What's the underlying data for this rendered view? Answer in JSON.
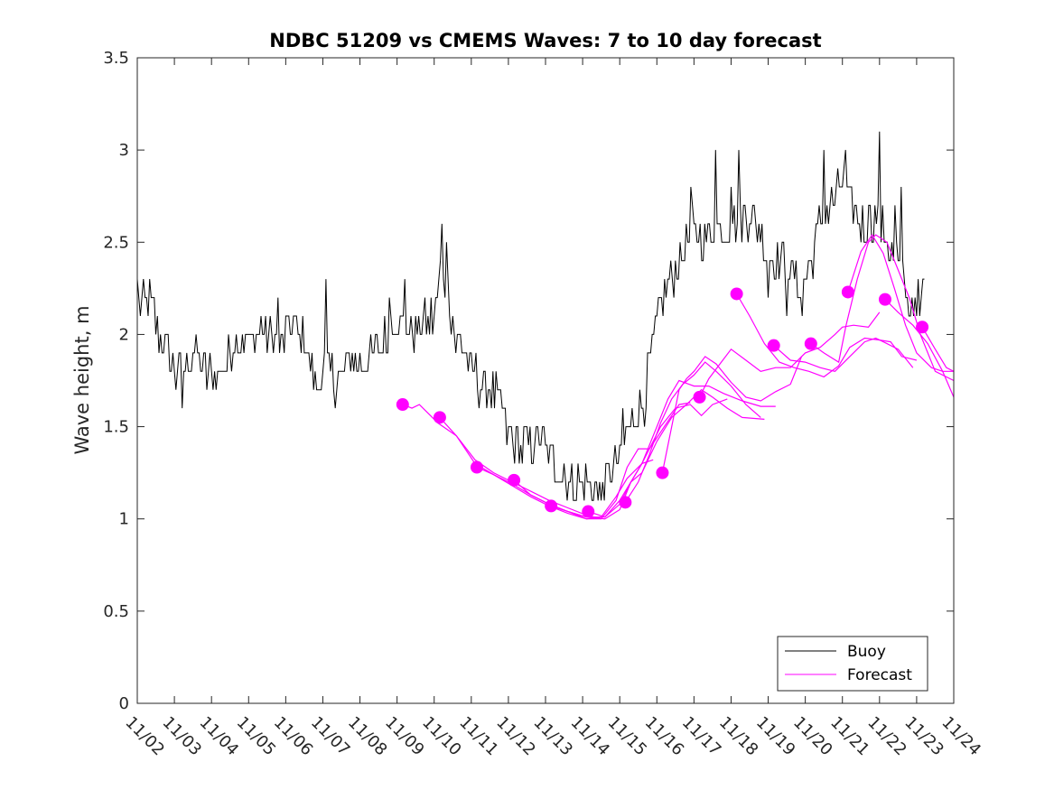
{
  "chart_data": {
    "type": "line",
    "title": "NDBC 51209 vs CMEMS Waves: 7 to 10 day forecast",
    "xlabel": "",
    "ylabel": "Wave height, m",
    "xlim": [
      0,
      22
    ],
    "ylim": [
      0,
      3.5
    ],
    "x_tick_labels": [
      "11/02",
      "11/03",
      "11/04",
      "11/05",
      "11/06",
      "11/07",
      "11/08",
      "11/09",
      "11/10",
      "11/11",
      "11/12",
      "11/13",
      "11/14",
      "11/15",
      "11/16",
      "11/17",
      "11/18",
      "11/19",
      "11/20",
      "11/21",
      "11/22",
      "11/23",
      "11/24"
    ],
    "y_ticks": [
      0,
      0.5,
      1,
      1.5,
      2,
      2.5,
      3,
      3.5
    ],
    "y_tick_labels": [
      "0",
      "0.5",
      "1",
      "1.5",
      "2",
      "2.5",
      "3",
      "3.5"
    ],
    "grid": false,
    "legend": {
      "position": "bottom-right",
      "entries": [
        "Buoy",
        "Forecast"
      ]
    },
    "colors": {
      "buoy": "#000000",
      "forecast": "#ff00ff"
    },
    "buoy": {
      "name": "Buoy",
      "anchors": [
        [
          0.0,
          2.15
        ],
        [
          0.3,
          2.2
        ],
        [
          0.6,
          2.0
        ],
        [
          0.9,
          1.85
        ],
        [
          1.2,
          1.75
        ],
        [
          1.5,
          1.9
        ],
        [
          1.8,
          1.8
        ],
        [
          2.1,
          1.75
        ],
        [
          2.4,
          1.85
        ],
        [
          2.7,
          2.0
        ],
        [
          3.0,
          1.95
        ],
        [
          3.3,
          2.05
        ],
        [
          3.6,
          2.0
        ],
        [
          3.9,
          1.95
        ],
        [
          4.2,
          2.05
        ],
        [
          4.5,
          1.95
        ],
        [
          4.8,
          1.75
        ],
        [
          5.1,
          1.8
        ],
        [
          5.4,
          1.75
        ],
        [
          5.7,
          1.85
        ],
        [
          6.0,
          1.85
        ],
        [
          6.3,
          1.85
        ],
        [
          6.6,
          1.95
        ],
        [
          6.9,
          2.05
        ],
        [
          7.2,
          2.05
        ],
        [
          7.5,
          2.0
        ],
        [
          7.8,
          2.05
        ],
        [
          8.0,
          2.1
        ],
        [
          8.2,
          2.35
        ],
        [
          8.4,
          2.2
        ],
        [
          8.6,
          1.95
        ],
        [
          8.8,
          1.95
        ],
        [
          9.0,
          1.8
        ],
        [
          9.2,
          1.75
        ],
        [
          9.5,
          1.7
        ],
        [
          9.8,
          1.6
        ],
        [
          10.0,
          1.45
        ],
        [
          10.3,
          1.4
        ],
        [
          10.6,
          1.4
        ],
        [
          10.9,
          1.45
        ],
        [
          11.2,
          1.3
        ],
        [
          11.5,
          1.2
        ],
        [
          11.8,
          1.2
        ],
        [
          12.1,
          1.2
        ],
        [
          12.4,
          1.15
        ],
        [
          12.7,
          1.25
        ],
        [
          13.0,
          1.3
        ],
        [
          13.2,
          1.45
        ],
        [
          13.4,
          1.55
        ],
        [
          13.6,
          1.6
        ],
        [
          13.8,
          1.8
        ],
        [
          14.0,
          2.05
        ],
        [
          14.2,
          2.25
        ],
        [
          14.5,
          2.35
        ],
        [
          14.8,
          2.5
        ],
        [
          15.0,
          2.55
        ],
        [
          15.3,
          2.55
        ],
        [
          15.6,
          2.6
        ],
        [
          15.9,
          2.6
        ],
        [
          16.2,
          2.65
        ],
        [
          16.5,
          2.65
        ],
        [
          16.8,
          2.55
        ],
        [
          17.0,
          2.45
        ],
        [
          17.3,
          2.4
        ],
        [
          17.6,
          2.35
        ],
        [
          17.9,
          2.25
        ],
        [
          18.2,
          2.45
        ],
        [
          18.5,
          2.65
        ],
        [
          18.8,
          2.75
        ],
        [
          19.0,
          2.8
        ],
        [
          19.3,
          2.7
        ],
        [
          19.6,
          2.55
        ],
        [
          19.9,
          2.65
        ],
        [
          20.2,
          2.5
        ],
        [
          20.5,
          2.4
        ],
        [
          20.7,
          2.2
        ],
        [
          20.9,
          2.15
        ],
        [
          21.2,
          2.25
        ]
      ],
      "spikes": [
        [
          0.0,
          2.3
        ],
        [
          1.2,
          1.6
        ],
        [
          3.8,
          2.2
        ],
        [
          4.0,
          2.1
        ],
        [
          5.1,
          2.3
        ],
        [
          6.8,
          2.2
        ],
        [
          7.2,
          2.3
        ],
        [
          8.2,
          2.6
        ],
        [
          8.35,
          2.5
        ],
        [
          11.5,
          1.3
        ],
        [
          12.4,
          1.1
        ],
        [
          12.5,
          1.1
        ],
        [
          13.1,
          1.6
        ],
        [
          14.9,
          2.8
        ],
        [
          15.6,
          3.0
        ],
        [
          16.0,
          2.8
        ],
        [
          16.2,
          3.0
        ],
        [
          17.0,
          2.2
        ],
        [
          17.5,
          2.1
        ],
        [
          17.9,
          2.1
        ],
        [
          18.5,
          3.0
        ],
        [
          19.1,
          3.0
        ],
        [
          19.7,
          2.7
        ],
        [
          20.0,
          3.1
        ],
        [
          20.4,
          2.7
        ],
        [
          20.6,
          2.8
        ],
        [
          20.8,
          2.1
        ],
        [
          21.1,
          2.1
        ],
        [
          21.3,
          2.4
        ]
      ],
      "noise_amplitude": 0.1,
      "quantization": 0.1,
      "samples_per_day": 24
    },
    "forecasts": [
      {
        "name": "Forecast",
        "marker": [
          7.15,
          1.62
        ],
        "points": [
          [
            7.15,
            1.62
          ],
          [
            7.4,
            1.6
          ],
          [
            7.6,
            1.62
          ],
          [
            7.9,
            1.56
          ],
          [
            8.1,
            1.52
          ],
          [
            8.6,
            1.45
          ],
          [
            9.1,
            1.32
          ],
          [
            9.6,
            1.25
          ],
          [
            10.1,
            1.2
          ],
          [
            10.6,
            1.15
          ],
          [
            11.1,
            1.1
          ],
          [
            11.6,
            1.06
          ],
          [
            12.1,
            1.02
          ],
          [
            12.5,
            1.0
          ]
        ]
      },
      {
        "name": "Forecast",
        "marker": [
          8.15,
          1.55
        ],
        "points": [
          [
            8.15,
            1.55
          ],
          [
            8.6,
            1.45
          ],
          [
            9.1,
            1.3
          ],
          [
            9.6,
            1.24
          ],
          [
            10.1,
            1.19
          ],
          [
            10.6,
            1.13
          ],
          [
            11.1,
            1.08
          ],
          [
            11.6,
            1.04
          ],
          [
            12.1,
            1.01
          ],
          [
            12.6,
            1.0
          ],
          [
            13.0,
            1.05
          ],
          [
            13.3,
            1.2
          ],
          [
            13.6,
            1.3
          ],
          [
            13.9,
            1.32
          ]
        ]
      },
      {
        "name": "Forecast",
        "marker": [
          9.15,
          1.28
        ],
        "points": [
          [
            9.15,
            1.28
          ],
          [
            9.6,
            1.24
          ],
          [
            10.1,
            1.18
          ],
          [
            10.6,
            1.12
          ],
          [
            11.1,
            1.07
          ],
          [
            11.6,
            1.03
          ],
          [
            12.1,
            1.0
          ],
          [
            12.5,
            1.0
          ],
          [
            12.9,
            1.1
          ],
          [
            13.2,
            1.28
          ],
          [
            13.5,
            1.38
          ],
          [
            13.8,
            1.38
          ],
          [
            14.2,
            1.5
          ],
          [
            14.6,
            1.62
          ],
          [
            14.9,
            1.63
          ]
        ]
      },
      {
        "name": "Forecast",
        "marker": [
          10.15,
          1.21
        ],
        "points": [
          [
            10.15,
            1.21
          ],
          [
            10.6,
            1.13
          ],
          [
            11.1,
            1.08
          ],
          [
            11.6,
            1.04
          ],
          [
            12.1,
            1.0
          ],
          [
            12.5,
            1.01
          ],
          [
            12.9,
            1.12
          ],
          [
            13.2,
            1.22
          ],
          [
            13.6,
            1.3
          ],
          [
            14.1,
            1.5
          ],
          [
            14.5,
            1.6
          ],
          [
            14.9,
            1.62
          ],
          [
            15.2,
            1.56
          ],
          [
            15.5,
            1.62
          ],
          [
            15.9,
            1.65
          ]
        ]
      },
      {
        "name": "Forecast",
        "marker": [
          11.15,
          1.07
        ],
        "points": [
          [
            11.15,
            1.07
          ],
          [
            11.6,
            1.04
          ],
          [
            12.1,
            1.01
          ],
          [
            12.6,
            1.01
          ],
          [
            13.0,
            1.1
          ],
          [
            13.3,
            1.2
          ],
          [
            13.6,
            1.25
          ],
          [
            14.0,
            1.42
          ],
          [
            14.4,
            1.55
          ],
          [
            14.8,
            1.62
          ],
          [
            15.2,
            1.7
          ],
          [
            15.5,
            1.66
          ],
          [
            15.9,
            1.6
          ],
          [
            16.3,
            1.55
          ],
          [
            16.9,
            1.54
          ]
        ]
      },
      {
        "name": "Forecast",
        "marker": [
          12.15,
          1.04
        ],
        "points": [
          [
            12.15,
            1.04
          ],
          [
            12.6,
            1.01
          ],
          [
            13.0,
            1.08
          ],
          [
            13.3,
            1.2
          ],
          [
            13.6,
            1.3
          ],
          [
            14.0,
            1.5
          ],
          [
            14.3,
            1.65
          ],
          [
            14.6,
            1.75
          ],
          [
            15.0,
            1.72
          ],
          [
            15.4,
            1.72
          ],
          [
            15.8,
            1.68
          ],
          [
            16.3,
            1.64
          ],
          [
            16.8,
            1.61
          ],
          [
            17.2,
            1.61
          ]
        ]
      },
      {
        "name": "Forecast",
        "marker": [
          13.15,
          1.09
        ],
        "points": [
          [
            13.15,
            1.09
          ],
          [
            13.5,
            1.2
          ],
          [
            13.8,
            1.35
          ],
          [
            14.1,
            1.52
          ],
          [
            14.4,
            1.65
          ],
          [
            14.7,
            1.73
          ],
          [
            15.0,
            1.78
          ],
          [
            15.3,
            1.85
          ],
          [
            15.6,
            1.8
          ],
          [
            16.0,
            1.72
          ],
          [
            16.4,
            1.62
          ],
          [
            16.8,
            1.55
          ]
        ]
      },
      {
        "name": "Forecast",
        "marker": [
          14.15,
          1.25
        ],
        "points": [
          [
            14.15,
            1.25
          ],
          [
            14.4,
            1.5
          ],
          [
            14.6,
            1.7
          ],
          [
            14.8,
            1.76
          ],
          [
            15.0,
            1.8
          ],
          [
            15.3,
            1.88
          ],
          [
            15.6,
            1.84
          ],
          [
            16.0,
            1.74
          ],
          [
            16.4,
            1.66
          ],
          [
            16.8,
            1.64
          ],
          [
            17.2,
            1.69
          ],
          [
            17.6,
            1.73
          ],
          [
            17.9,
            1.88
          ]
        ]
      },
      {
        "name": "Forecast",
        "marker": [
          15.15,
          1.66
        ],
        "points": [
          [
            15.15,
            1.66
          ],
          [
            15.4,
            1.76
          ],
          [
            15.7,
            1.84
          ],
          [
            16.0,
            1.92
          ],
          [
            16.4,
            1.86
          ],
          [
            16.8,
            1.8
          ],
          [
            17.2,
            1.82
          ],
          [
            17.6,
            1.82
          ],
          [
            18.0,
            1.9
          ],
          [
            18.4,
            1.93
          ],
          [
            18.8,
            2.0
          ],
          [
            19.0,
            2.04
          ],
          [
            19.3,
            2.05
          ],
          [
            19.7,
            2.04
          ],
          [
            20.0,
            2.12
          ]
        ]
      },
      {
        "name": "Forecast",
        "marker": [
          16.15,
          2.22
        ],
        "points": [
          [
            16.15,
            2.22
          ],
          [
            16.5,
            2.1
          ],
          [
            16.9,
            1.95
          ],
          [
            17.3,
            1.85
          ],
          [
            17.7,
            1.82
          ],
          [
            18.1,
            1.8
          ],
          [
            18.5,
            1.77
          ],
          [
            18.9,
            1.83
          ],
          [
            19.2,
            1.93
          ],
          [
            19.6,
            1.98
          ],
          [
            20.0,
            1.97
          ],
          [
            20.3,
            1.96
          ],
          [
            20.6,
            1.88
          ],
          [
            21.0,
            1.86
          ]
        ]
      },
      {
        "name": "Forecast",
        "marker": [
          17.15,
          1.94
        ],
        "points": [
          [
            17.15,
            1.94
          ],
          [
            17.6,
            1.86
          ],
          [
            18.0,
            1.85
          ],
          [
            18.4,
            1.82
          ],
          [
            18.8,
            1.8
          ],
          [
            19.2,
            1.88
          ],
          [
            19.6,
            1.96
          ],
          [
            19.9,
            1.98
          ],
          [
            20.2,
            1.95
          ],
          [
            20.5,
            1.92
          ],
          [
            20.9,
            1.82
          ]
        ]
      },
      {
        "name": "Forecast",
        "marker": [
          18.15,
          1.95
        ],
        "points": [
          [
            18.15,
            1.95
          ],
          [
            18.5,
            1.9
          ],
          [
            18.9,
            1.85
          ],
          [
            19.1,
            2.05
          ],
          [
            19.4,
            2.3
          ],
          [
            19.7,
            2.5
          ],
          [
            19.9,
            2.54
          ],
          [
            20.2,
            2.5
          ],
          [
            20.5,
            2.35
          ],
          [
            20.8,
            2.2
          ],
          [
            21.1,
            2.0
          ],
          [
            21.5,
            1.8
          ],
          [
            22.0,
            1.75
          ]
        ]
      },
      {
        "name": "Forecast",
        "marker": [
          19.15,
          2.23
        ],
        "points": [
          [
            19.15,
            2.23
          ],
          [
            19.5,
            2.45
          ],
          [
            19.8,
            2.54
          ],
          [
            20.1,
            2.44
          ],
          [
            20.4,
            2.25
          ],
          [
            20.7,
            2.05
          ],
          [
            21.0,
            1.9
          ],
          [
            21.4,
            1.82
          ],
          [
            21.7,
            1.8
          ],
          [
            22.0,
            1.8
          ]
        ]
      },
      {
        "name": "Forecast",
        "marker": [
          20.15,
          2.19
        ],
        "points": [
          [
            20.15,
            2.19
          ],
          [
            20.5,
            2.12
          ],
          [
            20.9,
            2.05
          ],
          [
            21.3,
            1.95
          ],
          [
            21.7,
            1.8
          ],
          [
            22.0,
            1.66
          ]
        ]
      },
      {
        "name": "Forecast",
        "marker": [
          21.15,
          2.04
        ],
        "points": [
          [
            21.15,
            2.04
          ],
          [
            21.5,
            1.92
          ],
          [
            21.8,
            1.82
          ],
          [
            22.0,
            1.8
          ]
        ]
      }
    ]
  }
}
